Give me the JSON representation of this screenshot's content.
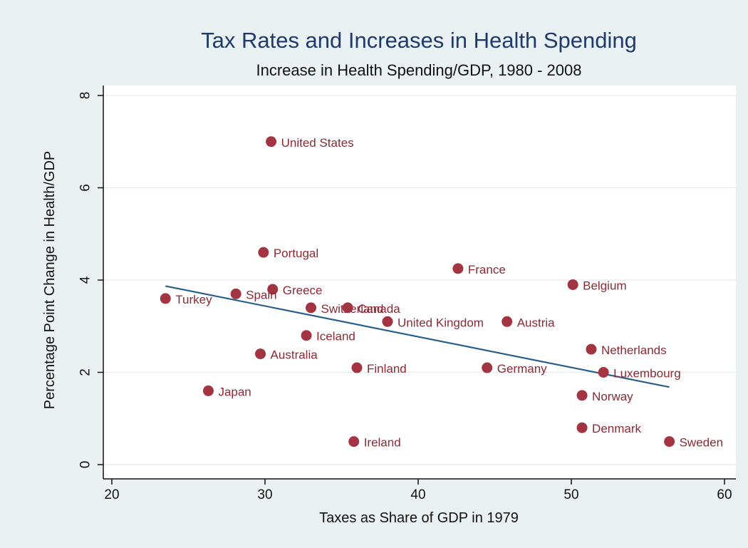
{
  "chart_data": {
    "type": "scatter",
    "title": "Tax Rates and Increases in Health Spending",
    "subtitle": "Increase in Health Spending/GDP, 1980 - 2008",
    "xlabel": "Taxes as Share of GDP in 1979",
    "ylabel": "Percentage Point Change in Health/GDP",
    "xlim": [
      20,
      60
    ],
    "ylim": [
      0,
      8
    ],
    "x_ticks": [
      20,
      30,
      40,
      50,
      60
    ],
    "y_ticks": [
      0,
      2,
      4,
      6,
      8
    ],
    "grid": "horizontal",
    "colors": {
      "background_outer": "#eaf1f3",
      "plot_background": "#ffffff",
      "grid": "#e6ebec",
      "point": "#a33542",
      "label": "#8b2a35",
      "fit_line": "#2a5f8a",
      "title": "#1f3a6b"
    },
    "points": [
      {
        "label": "United States",
        "x": 30.4,
        "y": 7.0
      },
      {
        "label": "Portugal",
        "x": 29.9,
        "y": 4.6
      },
      {
        "label": "France",
        "x": 42.6,
        "y": 4.25
      },
      {
        "label": "Belgium",
        "x": 50.1,
        "y": 3.9
      },
      {
        "label": "Greece",
        "x": 30.5,
        "y": 3.8
      },
      {
        "label": "Spain",
        "x": 28.1,
        "y": 3.7
      },
      {
        "label": "Turkey",
        "x": 23.5,
        "y": 3.6
      },
      {
        "label": "Switzerland",
        "x": 33.0,
        "y": 3.4
      },
      {
        "label": "Canada",
        "x": 35.4,
        "y": 3.4
      },
      {
        "label": "United Kingdom",
        "x": 38.0,
        "y": 3.1
      },
      {
        "label": "Austria",
        "x": 45.8,
        "y": 3.1
      },
      {
        "label": "Iceland",
        "x": 32.7,
        "y": 2.8
      },
      {
        "label": "Netherlands",
        "x": 51.3,
        "y": 2.5
      },
      {
        "label": "Australia",
        "x": 29.7,
        "y": 2.4
      },
      {
        "label": "Finland",
        "x": 36.0,
        "y": 2.1
      },
      {
        "label": "Germany",
        "x": 44.5,
        "y": 2.1
      },
      {
        "label": "Luxembourg",
        "x": 52.1,
        "y": 2.0
      },
      {
        "label": "Japan",
        "x": 26.3,
        "y": 1.6
      },
      {
        "label": "Norway",
        "x": 50.7,
        "y": 1.5
      },
      {
        "label": "Denmark",
        "x": 50.7,
        "y": 0.8
      },
      {
        "label": "Ireland",
        "x": 35.8,
        "y": 0.5
      },
      {
        "label": "Sweden",
        "x": 56.4,
        "y": 0.5
      }
    ],
    "fit_line": {
      "x": [
        23.5,
        56.4
      ],
      "y": [
        3.87,
        1.68
      ]
    }
  }
}
